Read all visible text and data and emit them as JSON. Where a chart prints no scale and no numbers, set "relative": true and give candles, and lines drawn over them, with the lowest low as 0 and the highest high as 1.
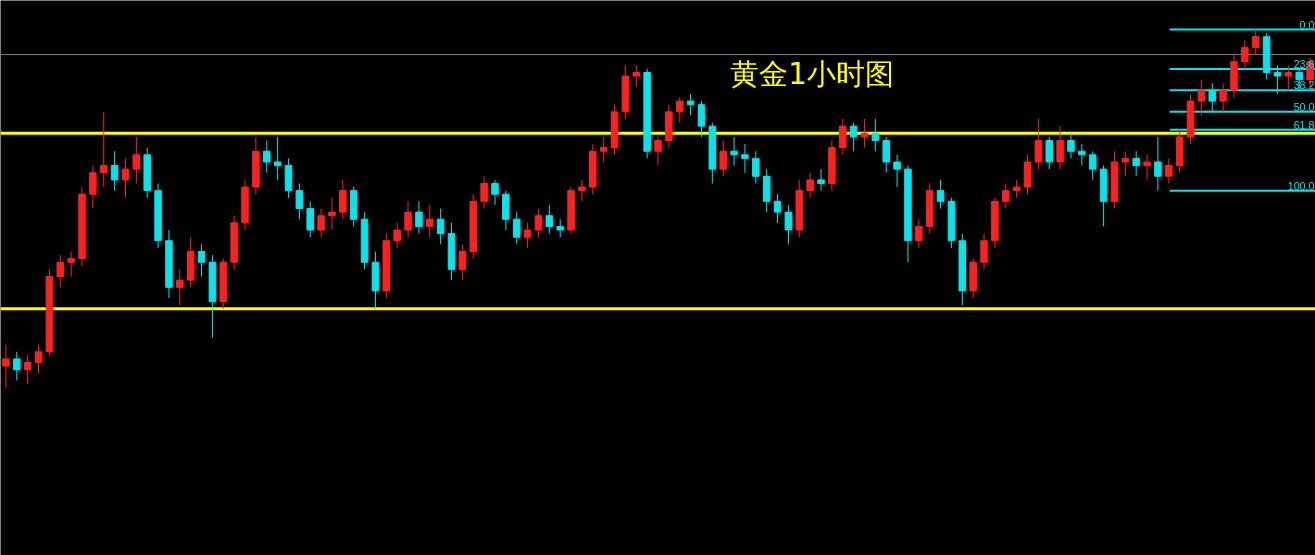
{
  "chart_data": {
    "type": "candlestick",
    "title": "黄金1小时图",
    "relative": true,
    "categories": [
      null,
      null,
      null,
      null,
      null,
      null,
      null,
      null,
      null,
      null,
      null,
      null,
      null,
      null,
      null,
      null,
      null,
      null,
      null,
      null,
      null,
      null,
      null,
      null,
      null,
      null,
      null,
      null,
      null,
      null,
      null,
      null,
      null,
      null,
      null,
      null,
      null,
      null,
      null,
      null,
      null,
      null,
      null,
      null,
      null,
      null,
      null,
      null,
      null,
      null,
      null,
      null,
      null,
      null,
      null,
      null,
      null,
      null,
      null,
      null,
      null,
      null,
      null,
      null,
      null,
      null,
      null,
      null,
      null,
      null,
      null,
      null,
      null,
      null,
      null,
      null,
      null,
      null,
      null,
      null,
      null,
      null,
      null,
      null,
      null,
      null,
      null,
      null,
      null,
      null,
      null,
      null,
      null,
      null,
      null,
      null,
      null,
      null,
      null,
      null,
      null,
      null,
      null,
      null,
      null,
      null,
      null,
      null,
      null,
      null,
      null,
      null,
      null,
      null,
      null,
      null,
      null,
      null,
      null,
      null,
      null
    ],
    "ohlc": [
      [
        0.06,
        0.12,
        0.0,
        0.08
      ],
      [
        0.08,
        0.1,
        0.02,
        0.05
      ],
      [
        0.05,
        0.09,
        0.01,
        0.07
      ],
      [
        0.07,
        0.12,
        0.04,
        0.1
      ],
      [
        0.1,
        0.33,
        0.09,
        0.31
      ],
      [
        0.31,
        0.37,
        0.28,
        0.35
      ],
      [
        0.35,
        0.38,
        0.31,
        0.36
      ],
      [
        0.36,
        0.56,
        0.34,
        0.54
      ],
      [
        0.54,
        0.62,
        0.5,
        0.6
      ],
      [
        0.6,
        0.77,
        0.56,
        0.62
      ],
      [
        0.62,
        0.66,
        0.55,
        0.58
      ],
      [
        0.58,
        0.64,
        0.53,
        0.61
      ],
      [
        0.61,
        0.7,
        0.57,
        0.65
      ],
      [
        0.65,
        0.67,
        0.53,
        0.55
      ],
      [
        0.55,
        0.57,
        0.39,
        0.41
      ],
      [
        0.41,
        0.44,
        0.25,
        0.28
      ],
      [
        0.28,
        0.33,
        0.23,
        0.3
      ],
      [
        0.3,
        0.42,
        0.28,
        0.38
      ],
      [
        0.38,
        0.4,
        0.31,
        0.35
      ],
      [
        0.35,
        0.37,
        0.14,
        0.24
      ],
      [
        0.24,
        0.36,
        0.22,
        0.35
      ],
      [
        0.35,
        0.48,
        0.33,
        0.46
      ],
      [
        0.46,
        0.58,
        0.44,
        0.56
      ],
      [
        0.56,
        0.7,
        0.54,
        0.66
      ],
      [
        0.66,
        0.69,
        0.6,
        0.63
      ],
      [
        0.63,
        0.7,
        0.58,
        0.62
      ],
      [
        0.62,
        0.64,
        0.53,
        0.55
      ],
      [
        0.55,
        0.57,
        0.47,
        0.5
      ],
      [
        0.5,
        0.52,
        0.42,
        0.44
      ],
      [
        0.44,
        0.5,
        0.42,
        0.48
      ],
      [
        0.48,
        0.53,
        0.44,
        0.49
      ],
      [
        0.49,
        0.58,
        0.47,
        0.55
      ],
      [
        0.55,
        0.56,
        0.45,
        0.47
      ],
      [
        0.47,
        0.49,
        0.33,
        0.35
      ],
      [
        0.35,
        0.38,
        0.22,
        0.27
      ],
      [
        0.27,
        0.43,
        0.25,
        0.41
      ],
      [
        0.41,
        0.46,
        0.39,
        0.44
      ],
      [
        0.44,
        0.52,
        0.42,
        0.49
      ],
      [
        0.49,
        0.52,
        0.43,
        0.45
      ],
      [
        0.45,
        0.51,
        0.42,
        0.47
      ],
      [
        0.47,
        0.5,
        0.4,
        0.43
      ],
      [
        0.43,
        0.46,
        0.3,
        0.33
      ],
      [
        0.33,
        0.4,
        0.3,
        0.38
      ],
      [
        0.38,
        0.54,
        0.36,
        0.52
      ],
      [
        0.52,
        0.59,
        0.5,
        0.57
      ],
      [
        0.57,
        0.58,
        0.51,
        0.54
      ],
      [
        0.54,
        0.55,
        0.44,
        0.47
      ],
      [
        0.47,
        0.49,
        0.4,
        0.42
      ],
      [
        0.42,
        0.46,
        0.39,
        0.44
      ],
      [
        0.44,
        0.5,
        0.42,
        0.48
      ],
      [
        0.48,
        0.51,
        0.43,
        0.45
      ],
      [
        0.45,
        0.47,
        0.42,
        0.44
      ],
      [
        0.44,
        0.56,
        0.43,
        0.55
      ],
      [
        0.55,
        0.58,
        0.52,
        0.56
      ],
      [
        0.56,
        0.68,
        0.54,
        0.66
      ],
      [
        0.66,
        0.7,
        0.63,
        0.67
      ],
      [
        0.67,
        0.79,
        0.65,
        0.77
      ],
      [
        0.77,
        0.9,
        0.75,
        0.87
      ],
      [
        0.87,
        0.9,
        0.84,
        0.88
      ],
      [
        0.88,
        0.89,
        0.64,
        0.66
      ],
      [
        0.66,
        0.7,
        0.62,
        0.69
      ],
      [
        0.69,
        0.79,
        0.67,
        0.77
      ],
      [
        0.77,
        0.81,
        0.74,
        0.8
      ],
      [
        0.8,
        0.82,
        0.76,
        0.79
      ],
      [
        0.79,
        0.8,
        0.7,
        0.73
      ],
      [
        0.73,
        0.74,
        0.57,
        0.61
      ],
      [
        0.61,
        0.69,
        0.59,
        0.66
      ],
      [
        0.66,
        0.7,
        0.62,
        0.65
      ],
      [
        0.65,
        0.68,
        0.6,
        0.64
      ],
      [
        0.64,
        0.66,
        0.57,
        0.59
      ],
      [
        0.59,
        0.61,
        0.49,
        0.52
      ],
      [
        0.52,
        0.54,
        0.46,
        0.49
      ],
      [
        0.49,
        0.51,
        0.4,
        0.44
      ],
      [
        0.44,
        0.58,
        0.42,
        0.55
      ],
      [
        0.55,
        0.6,
        0.53,
        0.58
      ],
      [
        0.58,
        0.61,
        0.55,
        0.57
      ],
      [
        0.57,
        0.69,
        0.55,
        0.67
      ],
      [
        0.67,
        0.75,
        0.65,
        0.73
      ],
      [
        0.73,
        0.74,
        0.66,
        0.7
      ],
      [
        0.7,
        0.75,
        0.67,
        0.71
      ],
      [
        0.71,
        0.75,
        0.66,
        0.69
      ],
      [
        0.69,
        0.7,
        0.6,
        0.63
      ],
      [
        0.63,
        0.65,
        0.56,
        0.61
      ],
      [
        0.61,
        0.62,
        0.35,
        0.41
      ],
      [
        0.41,
        0.47,
        0.39,
        0.45
      ],
      [
        0.45,
        0.57,
        0.43,
        0.55
      ],
      [
        0.55,
        0.58,
        0.5,
        0.52
      ],
      [
        0.52,
        0.53,
        0.39,
        0.41
      ],
      [
        0.41,
        0.43,
        0.23,
        0.27
      ],
      [
        0.27,
        0.36,
        0.25,
        0.35
      ],
      [
        0.35,
        0.43,
        0.33,
        0.41
      ],
      [
        0.41,
        0.53,
        0.39,
        0.52
      ],
      [
        0.52,
        0.57,
        0.5,
        0.55
      ],
      [
        0.55,
        0.58,
        0.53,
        0.56
      ],
      [
        0.56,
        0.65,
        0.54,
        0.63
      ],
      [
        0.63,
        0.75,
        0.61,
        0.69
      ],
      [
        0.69,
        0.7,
        0.61,
        0.63
      ],
      [
        0.63,
        0.73,
        0.61,
        0.69
      ],
      [
        0.69,
        0.71,
        0.64,
        0.66
      ],
      [
        0.66,
        0.68,
        0.62,
        0.65
      ],
      [
        0.65,
        0.66,
        0.58,
        0.61
      ],
      [
        0.61,
        0.62,
        0.45,
        0.52
      ],
      [
        0.52,
        0.66,
        0.5,
        0.63
      ],
      [
        0.63,
        0.66,
        0.59,
        0.64
      ],
      [
        0.64,
        0.66,
        0.59,
        0.62
      ],
      [
        0.62,
        0.65,
        0.58,
        0.63
      ],
      [
        0.63,
        0.7,
        0.55,
        0.59
      ],
      [
        0.59,
        0.64,
        0.57,
        0.62
      ],
      [
        0.62,
        0.72,
        0.6,
        0.7
      ],
      [
        0.7,
        0.82,
        0.68,
        0.8
      ],
      [
        0.8,
        0.86,
        0.76,
        0.83
      ],
      [
        0.83,
        0.85,
        0.77,
        0.8
      ],
      [
        0.8,
        0.85,
        0.77,
        0.83
      ],
      [
        0.83,
        0.93,
        0.81,
        0.91
      ],
      [
        0.91,
        0.97,
        0.89,
        0.95
      ],
      [
        0.95,
        1.0,
        0.93,
        0.98
      ],
      [
        0.98,
        0.99,
        0.86,
        0.88
      ],
      [
        0.88,
        0.9,
        0.82,
        0.87
      ],
      [
        0.87,
        0.9,
        0.83,
        0.88
      ],
      [
        0.88,
        0.89,
        0.83,
        0.86
      ],
      [
        0.86,
        0.92,
        0.84,
        0.91
      ]
    ],
    "ref_lines": [
      {
        "axis": "y",
        "value": 0.71,
        "color": "#ffff00"
      },
      {
        "axis": "y",
        "value": 0.22,
        "color": "#ffff00"
      },
      {
        "axis": "y",
        "value": 0.93,
        "color": "#808080"
      },
      {
        "axis": "y",
        "value": 1.0,
        "color": "#00e5ee"
      },
      {
        "axis": "y",
        "value": 0.89,
        "color": "#00e5ee"
      },
      {
        "axis": "y",
        "value": 0.83,
        "color": "#00e5ee"
      },
      {
        "axis": "y",
        "value": 0.77,
        "color": "#00e5ee"
      },
      {
        "axis": "y",
        "value": 0.72,
        "color": "#00e5ee"
      },
      {
        "axis": "y",
        "value": 0.55,
        "color": "#00e5ee"
      }
    ],
    "annotations": [
      {
        "text": "0.0",
        "y": 1.0
      },
      {
        "text": "23.6",
        "y": 0.89
      },
      {
        "text": "38.2",
        "y": 0.83
      },
      {
        "text": "50.0",
        "y": 0.77
      },
      {
        "text": "61.8",
        "y": 0.72
      },
      {
        "text": "100.0",
        "y": 0.55
      }
    ]
  }
}
